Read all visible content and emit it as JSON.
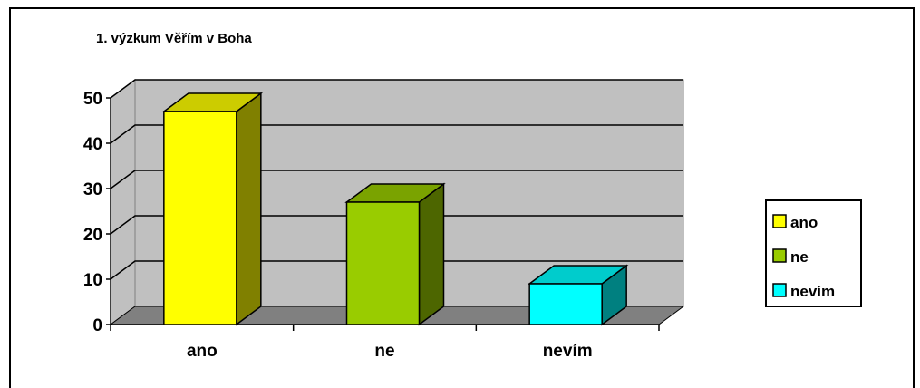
{
  "chart_data": {
    "type": "bar",
    "title": "1. výzkum Věřím v Boha",
    "categories": [
      "ano",
      "ne",
      "nevím"
    ],
    "series": [
      {
        "values": [
          47,
          27,
          9
        ]
      }
    ],
    "colors": [
      "#ffff00",
      "#99cc00",
      "#00ffff"
    ],
    "side_colors": [
      "#808000",
      "#4d6600",
      "#008080"
    ],
    "top_colors": [
      "#cccc00",
      "#7aa300",
      "#00cccc"
    ],
    "yticks": [
      "0",
      "10",
      "20",
      "30",
      "40",
      "50"
    ],
    "ylim": [
      0,
      50
    ],
    "grid": true,
    "legend": {
      "placement": "right",
      "entries": [
        "ano",
        "ne",
        "nevím"
      ]
    }
  }
}
